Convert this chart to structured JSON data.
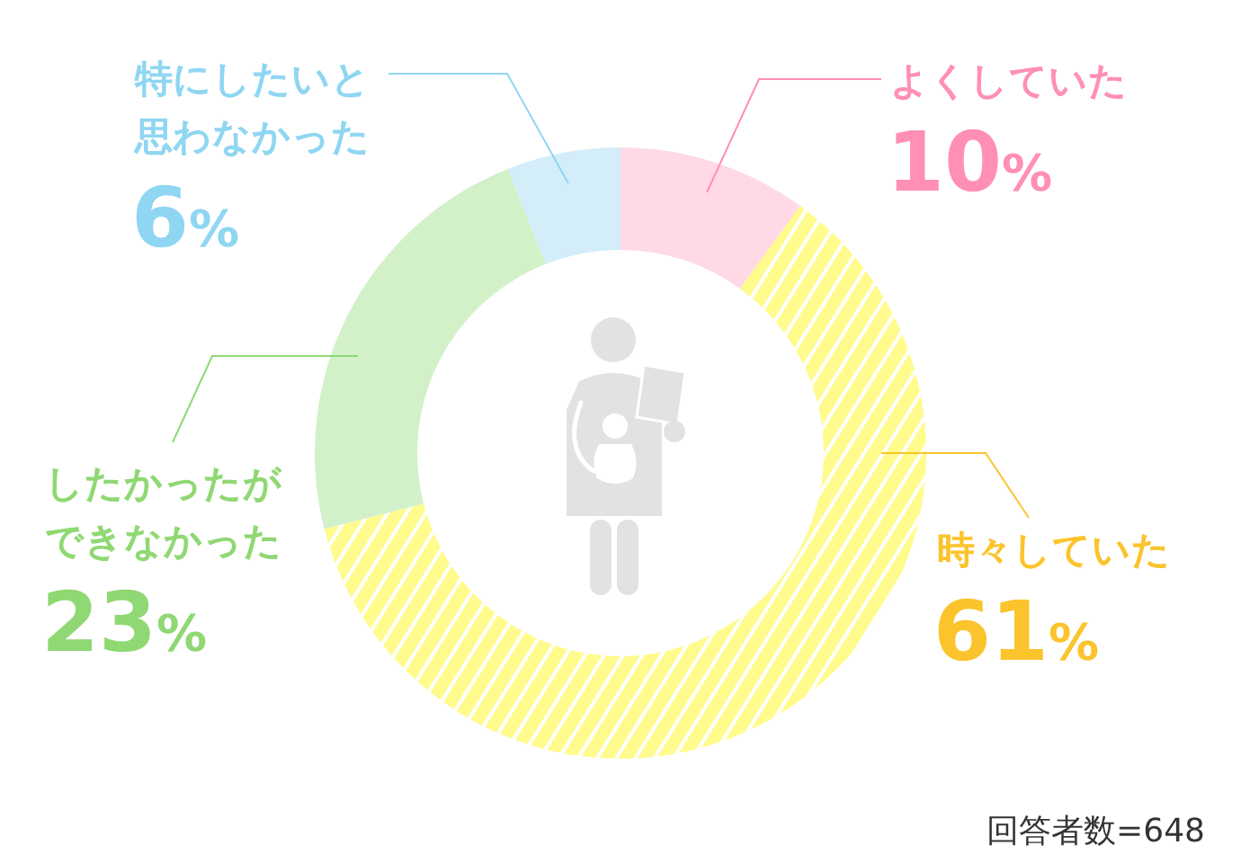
{
  "chart_data": {
    "type": "donut",
    "categories": [
      "よくしていた",
      "時々していた",
      "したかったができなかった",
      "特にしたいと思わなかった"
    ],
    "values": [
      10,
      61,
      23,
      6
    ],
    "value_labels": [
      "10%",
      "61%",
      "23%",
      "6%"
    ],
    "colors": [
      "#ffd9e6",
      "#fffb8c",
      "#d2f1c9",
      "#d3edf9"
    ],
    "annotations": [
      "回答者数=648"
    ]
  }
}
